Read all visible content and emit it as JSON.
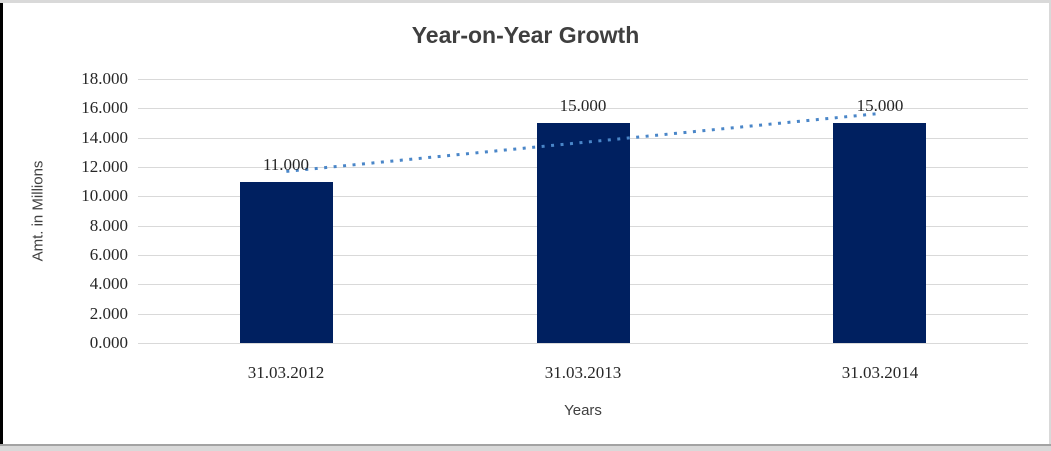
{
  "chart_data": {
    "type": "bar",
    "title": "Year-on-Year Growth",
    "xlabel": "Years",
    "ylabel": "Amt. in Millions",
    "categories": [
      "31.03.2012",
      "31.03.2013",
      "31.03.2014"
    ],
    "values": [
      11000,
      15000,
      15000
    ],
    "value_labels": [
      "11.000",
      "15.000",
      "15.000"
    ],
    "ylim": [
      0,
      18000
    ],
    "ytick_step": 2000,
    "ytick_labels": [
      "0.000",
      "2.000",
      "4.000",
      "6.000",
      "8.000",
      "10.000",
      "12.000",
      "14.000",
      "16.000",
      "18.000"
    ],
    "grid": "horizontal-light",
    "legend": false,
    "trendline": {
      "style": "dotted",
      "start_value": 11700,
      "end_value": 15650
    },
    "colors": {
      "bar": "#002060",
      "trend": "#4a86c8",
      "gridline": "#d9d9d9",
      "labels": "#262626",
      "title": "#3f3f3f"
    }
  }
}
